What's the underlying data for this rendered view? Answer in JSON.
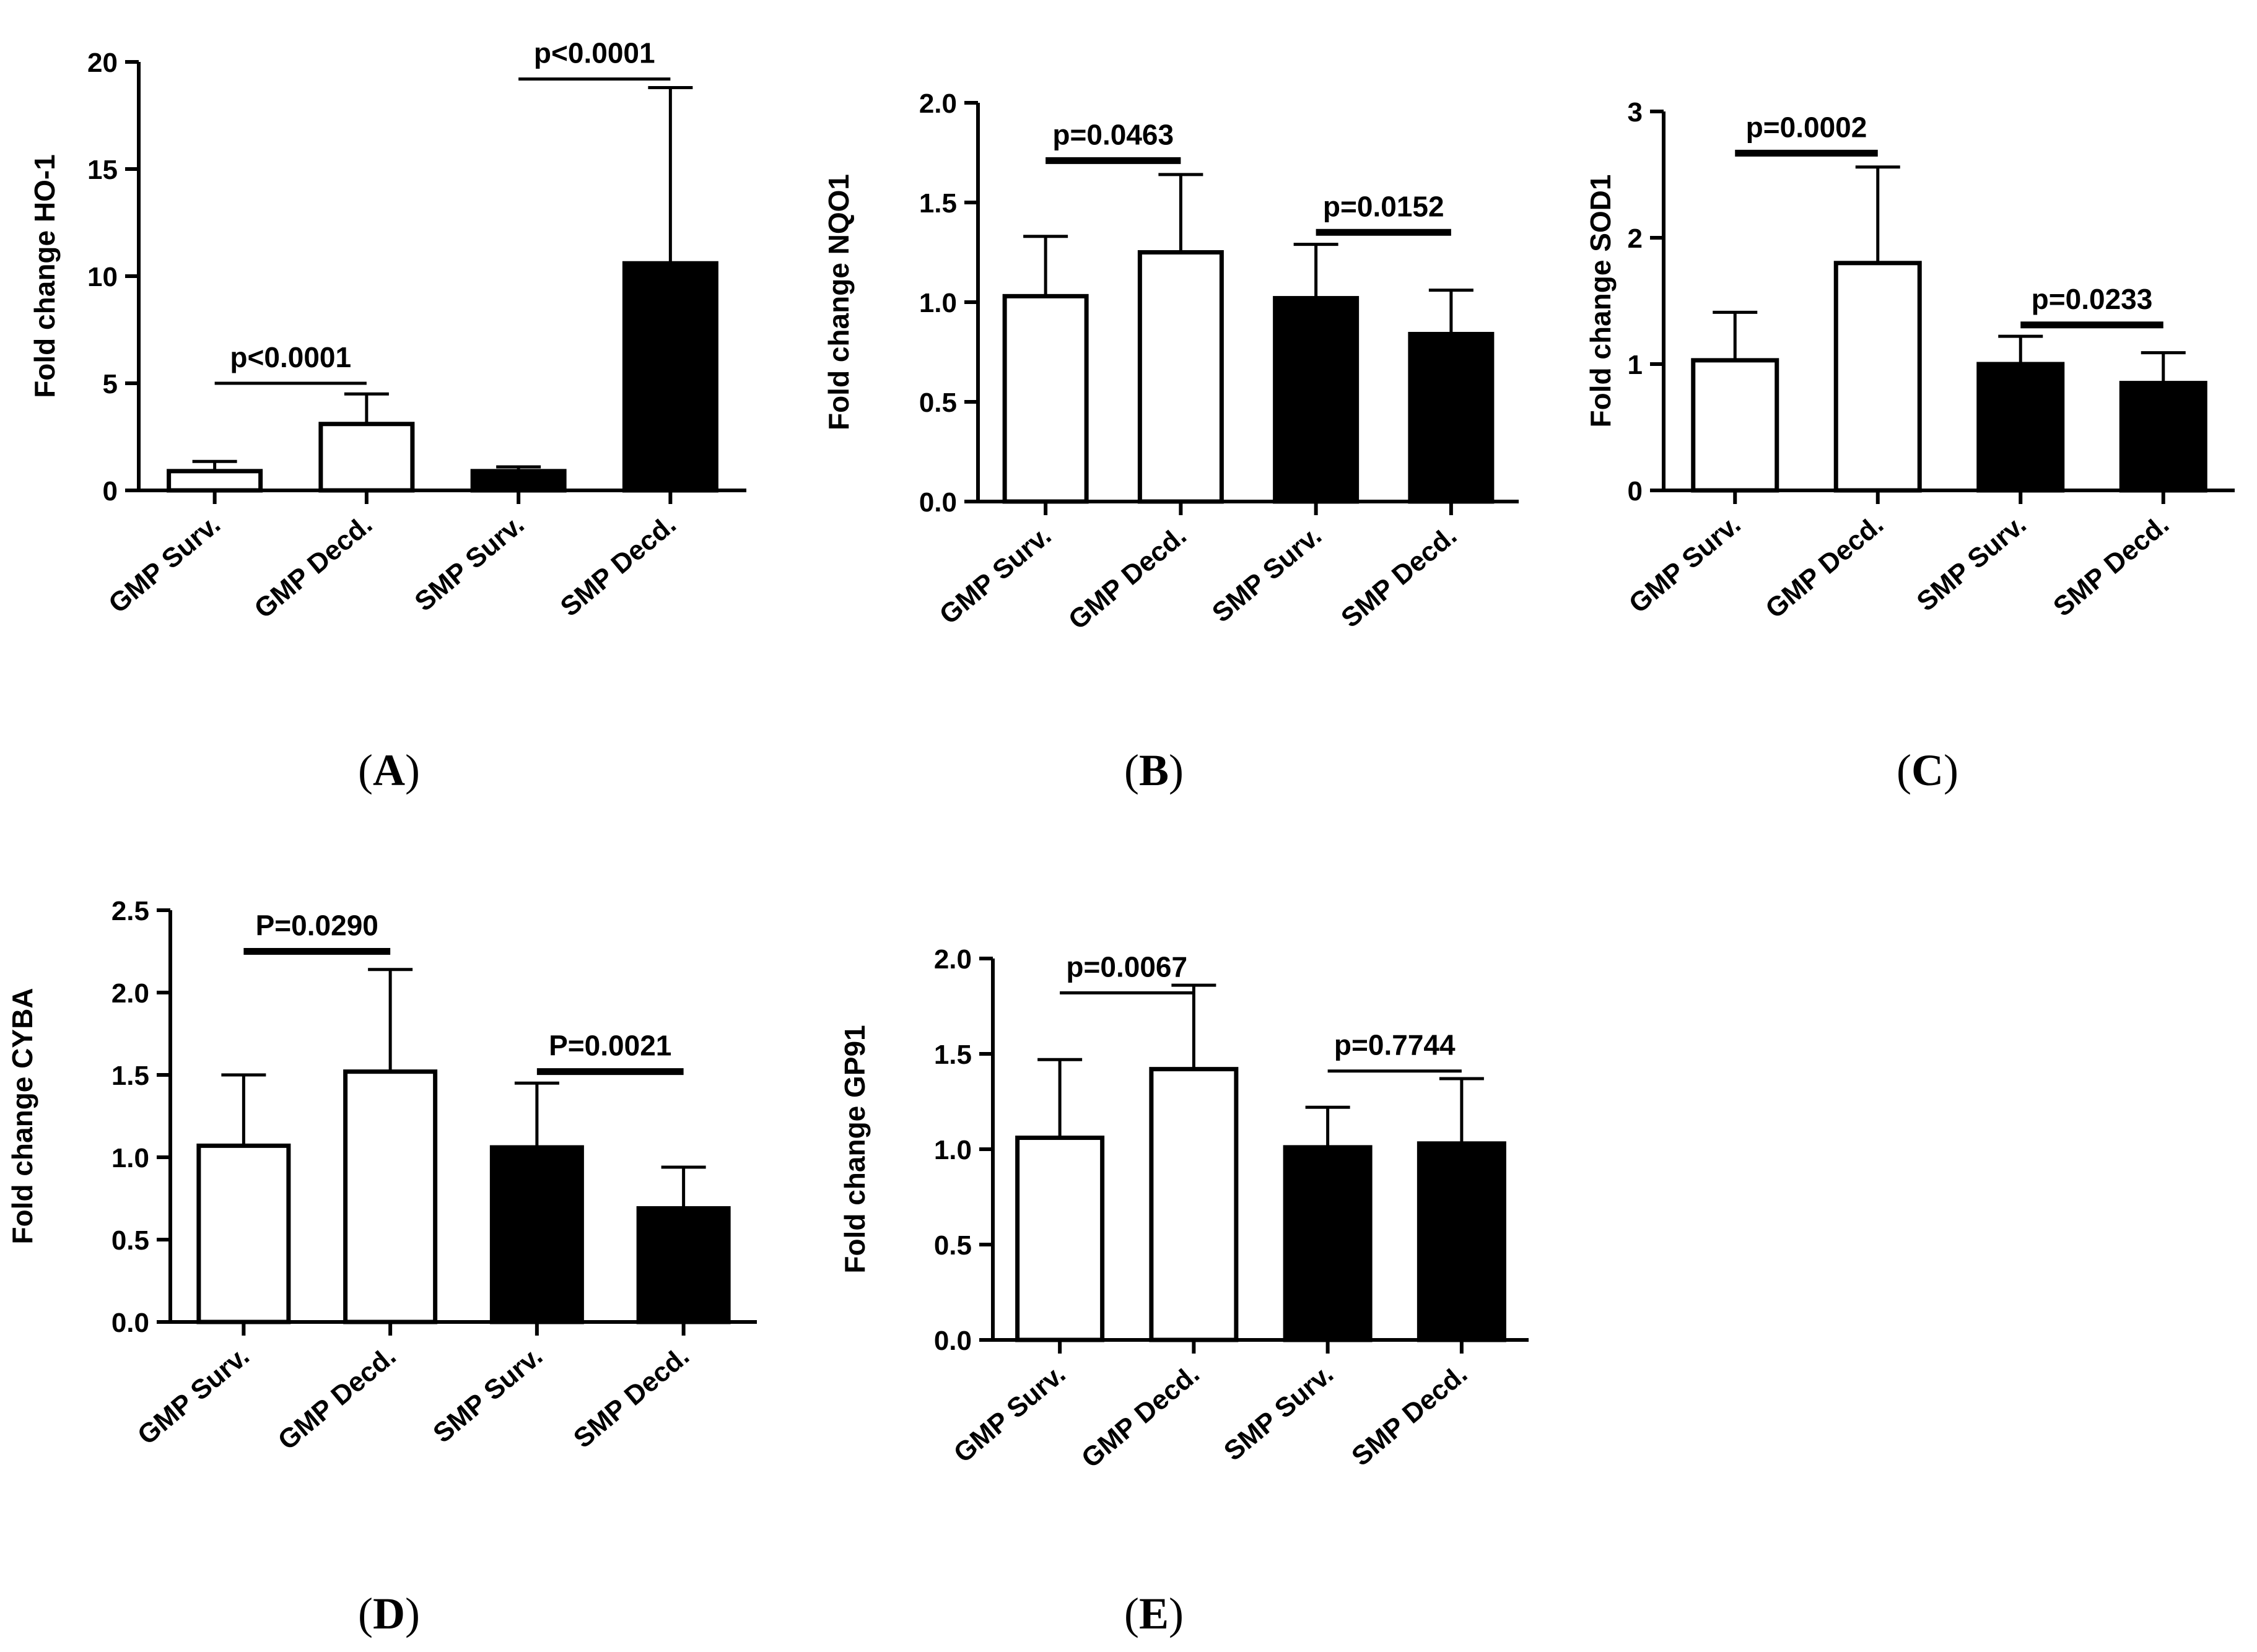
{
  "colors": {
    "open_bar": "#ffffff",
    "filled_bar": "#000000",
    "stroke": "#000000"
  },
  "chart_data": [
    {
      "type": "bar",
      "panel": "(A)",
      "panel_letter": "A",
      "ylabel": "Fold change HO-1",
      "categories": [
        "GMP Surv.",
        "GMP Decd.",
        "SMP Surv.",
        "SMP Decd."
      ],
      "values": [
        0.9,
        3.1,
        0.9,
        10.6
      ],
      "errors": [
        0.45,
        1.4,
        0.2,
        8.2
      ],
      "fills": [
        "open",
        "open",
        "filled",
        "filled"
      ],
      "yticks": [
        "0",
        "5",
        "10",
        "15",
        "20"
      ],
      "ylim": [
        0,
        20
      ],
      "comparisons": [
        {
          "from": 0,
          "to": 1,
          "y": 5.0,
          "label": "p<0.0001",
          "thick": false
        },
        {
          "from": 2,
          "to": 3,
          "y": 19.2,
          "label": "p<0.0001",
          "thick": false
        }
      ]
    },
    {
      "type": "bar",
      "panel": "(B)",
      "panel_letter": "B",
      "ylabel": "Fold change NQO1",
      "categories": [
        "GMP Surv.",
        "GMP Decd.",
        "SMP Surv.",
        "SMP Decd."
      ],
      "values": [
        1.03,
        1.25,
        1.02,
        0.84
      ],
      "errors": [
        0.3,
        0.39,
        0.27,
        0.22
      ],
      "fills": [
        "open",
        "open",
        "filled",
        "filled"
      ],
      "yticks": [
        "0.0",
        "0.5",
        "1.0",
        "1.5",
        "2.0"
      ],
      "ylim": [
        0,
        2
      ],
      "comparisons": [
        {
          "from": 0,
          "to": 1,
          "y": 1.71,
          "label": "p=0.0463",
          "thick": true
        },
        {
          "from": 2,
          "to": 3,
          "y": 1.35,
          "label": "p=0.0152",
          "thick": true
        }
      ]
    },
    {
      "type": "bar",
      "panel": "(C)",
      "panel_letter": "C",
      "ylabel": "Fold change SOD1",
      "categories": [
        "GMP Surv.",
        "GMP Decd.",
        "SMP Surv.",
        "SMP Decd."
      ],
      "values": [
        1.03,
        1.8,
        1.0,
        0.85
      ],
      "errors": [
        0.38,
        0.76,
        0.22,
        0.24
      ],
      "fills": [
        "open",
        "open",
        "filled",
        "filled"
      ],
      "yticks": [
        "0",
        "1",
        "2",
        "3"
      ],
      "ylim": [
        0,
        3
      ],
      "comparisons": [
        {
          "from": 0,
          "to": 1,
          "y": 2.67,
          "label": "p=0.0002",
          "thick": true
        },
        {
          "from": 2,
          "to": 3,
          "y": 1.31,
          "label": "p=0.0233",
          "thick": true
        }
      ]
    },
    {
      "type": "bar",
      "panel": "(D)",
      "panel_letter": "D",
      "ylabel": "Fold change CYBA",
      "categories": [
        "GMP Surv.",
        "GMP Decd.",
        "SMP Surv.",
        "SMP Decd."
      ],
      "values": [
        1.07,
        1.52,
        1.06,
        0.69
      ],
      "errors": [
        0.43,
        0.62,
        0.39,
        0.25
      ],
      "fills": [
        "open",
        "open",
        "filled",
        "filled"
      ],
      "yticks": [
        "0.0",
        "0.5",
        "1.0",
        "1.5",
        "2.0",
        "2.5"
      ],
      "ylim": [
        0,
        2.5
      ],
      "comparisons": [
        {
          "from": 0,
          "to": 1,
          "y": 2.25,
          "label": "P=0.0290",
          "thick": true
        },
        {
          "from": 2,
          "to": 3,
          "y": 1.52,
          "label": "P=0.0021",
          "thick": true
        }
      ]
    },
    {
      "type": "bar",
      "panel": "(E)",
      "panel_letter": "E",
      "ylabel": "Fold change GP91",
      "categories": [
        "GMP Surv.",
        "GMP Decd.",
        "SMP Surv.",
        "SMP Decd."
      ],
      "values": [
        1.06,
        1.42,
        1.01,
        1.03
      ],
      "errors": [
        0.41,
        0.44,
        0.21,
        0.34
      ],
      "fills": [
        "open",
        "open",
        "filled",
        "filled"
      ],
      "yticks": [
        "0.0",
        "0.5",
        "1.0",
        "1.5",
        "2.0"
      ],
      "ylim": [
        0,
        2
      ],
      "comparisons": [
        {
          "from": 0,
          "to": 1,
          "y": 1.82,
          "label": "p=0.0067",
          "thick": false
        },
        {
          "from": 2,
          "to": 3,
          "y": 1.41,
          "label": "p=0.7744",
          "thick": false
        }
      ]
    }
  ]
}
